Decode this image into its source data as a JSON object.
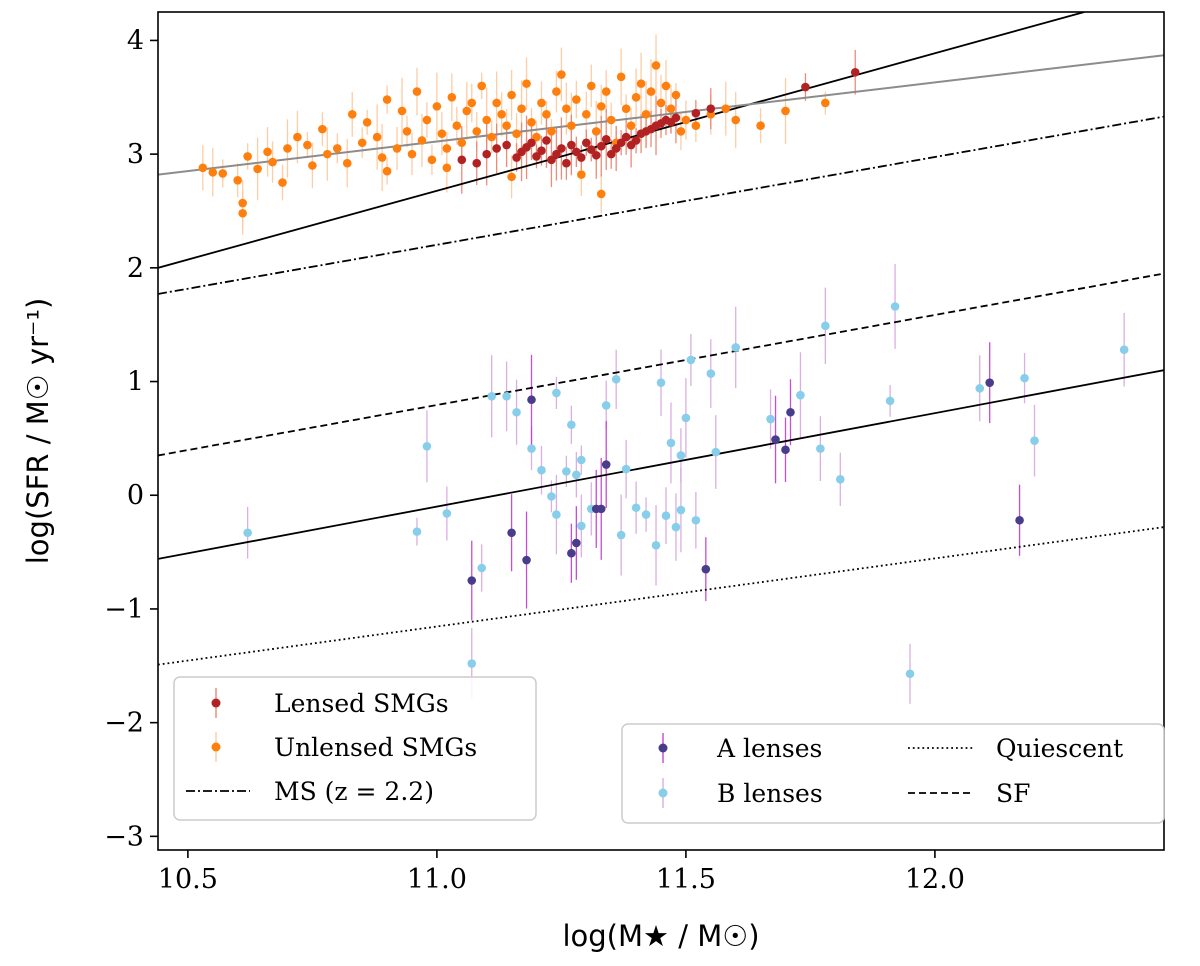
{
  "chart_data": {
    "type": "scatter",
    "xlabel": "log(M★ / M☉)",
    "ylabel": "log(SFR / M☉ yr⁻¹)",
    "xlim": [
      10.44,
      12.46
    ],
    "ylim": [
      -3.12,
      4.25
    ],
    "xticks": [
      10.5,
      11.0,
      11.5,
      12.0
    ],
    "xtick_labels": [
      "10.5",
      "11.0",
      "11.5",
      "12.0"
    ],
    "yticks": [
      -3,
      -2,
      -1,
      0,
      1,
      2,
      3,
      4
    ],
    "ytick_labels": [
      "−3",
      "−2",
      "−1",
      "0",
      "1",
      "2",
      "3",
      "4"
    ],
    "colors": {
      "lensed": "#b22222",
      "unlensed": "#ff7f0e",
      "a_lenses": "#483d8b",
      "b_lenses": "#87ceeb",
      "a_err": "#c03ad0",
      "b_err": "#d7a6de",
      "unlensed_err": "#ffc79a",
      "lensed_err": "#e8806a",
      "smg_fit": "#8c8c8c"
    },
    "lines": [
      {
        "name": "Lensed fit",
        "style": "solid",
        "color": "#000000",
        "x": [
          10.44,
          12.3
        ],
        "y": [
          2.0,
          4.25
        ]
      },
      {
        "name": "Unlensed fit",
        "style": "solid",
        "color": "#8c8c8c",
        "x": [
          10.44,
          12.46
        ],
        "y": [
          2.82,
          3.87
        ]
      },
      {
        "name": "MS (z = 2.2)",
        "style": "dashdot",
        "color": "#000000",
        "x": [
          10.44,
          12.46
        ],
        "y": [
          1.77,
          3.33
        ]
      },
      {
        "name": "SF",
        "style": "dashed",
        "color": "#000000",
        "x": [
          10.44,
          12.46
        ],
        "y": [
          0.35,
          1.95
        ]
      },
      {
        "name": "Lens fit",
        "style": "solid",
        "color": "#000000",
        "x": [
          10.44,
          12.46
        ],
        "y": [
          -0.56,
          1.1
        ]
      },
      {
        "name": "Quiescent",
        "style": "dotted",
        "color": "#000000",
        "x": [
          10.44,
          12.46
        ],
        "y": [
          -1.49,
          -0.28
        ]
      }
    ],
    "series": [
      {
        "name": "Lensed SMGs",
        "points": [
          [
            11.05,
            2.95
          ],
          [
            11.08,
            2.92
          ],
          [
            11.1,
            3.0
          ],
          [
            11.12,
            3.05
          ],
          [
            11.14,
            3.08
          ],
          [
            11.16,
            2.97
          ],
          [
            11.17,
            3.02
          ],
          [
            11.18,
            3.06
          ],
          [
            11.19,
            3.1
          ],
          [
            11.2,
            2.98
          ],
          [
            11.21,
            3.03
          ],
          [
            11.22,
            3.12
          ],
          [
            11.23,
            2.95
          ],
          [
            11.24,
            3.0
          ],
          [
            11.25,
            3.05
          ],
          [
            11.26,
            2.92
          ],
          [
            11.27,
            3.08
          ],
          [
            11.28,
            3.02
          ],
          [
            11.29,
            2.97
          ],
          [
            11.3,
            3.1
          ],
          [
            11.31,
            3.04
          ],
          [
            11.32,
            2.99
          ],
          [
            11.33,
            3.07
          ],
          [
            11.34,
            3.13
          ],
          [
            11.35,
            3.0
          ],
          [
            11.36,
            3.05
          ],
          [
            11.37,
            3.1
          ],
          [
            11.38,
            3.15
          ],
          [
            11.39,
            3.08
          ],
          [
            11.4,
            3.12
          ],
          [
            11.41,
            3.18
          ],
          [
            11.42,
            3.2
          ],
          [
            11.43,
            3.22
          ],
          [
            11.44,
            3.25
          ],
          [
            11.45,
            3.27
          ],
          [
            11.46,
            3.3
          ],
          [
            11.47,
            3.28
          ],
          [
            11.48,
            3.32
          ],
          [
            11.52,
            3.36
          ],
          [
            11.55,
            3.4
          ],
          [
            11.74,
            3.59
          ],
          [
            11.84,
            3.72
          ]
        ]
      },
      {
        "name": "Unlensed SMGs",
        "points": [
          [
            10.53,
            2.88
          ],
          [
            10.55,
            2.84
          ],
          [
            10.57,
            2.83
          ],
          [
            10.6,
            2.77
          ],
          [
            10.61,
            2.48
          ],
          [
            10.61,
            2.57
          ],
          [
            10.62,
            2.98
          ],
          [
            10.64,
            2.87
          ],
          [
            10.66,
            3.02
          ],
          [
            10.67,
            2.93
          ],
          [
            10.69,
            2.75
          ],
          [
            10.7,
            3.05
          ],
          [
            10.72,
            3.15
          ],
          [
            10.74,
            3.08
          ],
          [
            10.75,
            2.9
          ],
          [
            10.77,
            3.22
          ],
          [
            10.78,
            3.0
          ],
          [
            10.8,
            3.05
          ],
          [
            10.82,
            2.92
          ],
          [
            10.83,
            3.35
          ],
          [
            10.85,
            3.1
          ],
          [
            10.86,
            3.28
          ],
          [
            10.88,
            3.15
          ],
          [
            10.89,
            2.97
          ],
          [
            10.9,
            3.48
          ],
          [
            10.92,
            3.05
          ],
          [
            10.93,
            3.38
          ],
          [
            10.94,
            3.2
          ],
          [
            10.95,
            3.0
          ],
          [
            10.96,
            3.55
          ],
          [
            10.97,
            3.12
          ],
          [
            10.98,
            3.3
          ],
          [
            10.99,
            2.95
          ],
          [
            11.0,
            3.42
          ],
          [
            11.01,
            3.18
          ],
          [
            11.02,
            3.05
          ],
          [
            11.03,
            3.5
          ],
          [
            11.04,
            3.25
          ],
          [
            11.05,
            3.1
          ],
          [
            11.06,
            3.38
          ],
          [
            11.07,
            3.45
          ],
          [
            11.08,
            3.2
          ],
          [
            11.09,
            3.6
          ],
          [
            11.1,
            3.3
          ],
          [
            11.11,
            3.15
          ],
          [
            11.12,
            3.45
          ],
          [
            11.13,
            3.35
          ],
          [
            11.14,
            3.25
          ],
          [
            11.15,
            3.52
          ],
          [
            11.16,
            3.18
          ],
          [
            11.17,
            3.4
          ],
          [
            11.18,
            3.62
          ],
          [
            11.19,
            3.28
          ],
          [
            11.2,
            3.15
          ],
          [
            11.21,
            3.45
          ],
          [
            11.22,
            3.35
          ],
          [
            11.23,
            3.2
          ],
          [
            11.24,
            3.55
          ],
          [
            11.25,
            3.7
          ],
          [
            11.26,
            3.4
          ],
          [
            11.27,
            3.25
          ],
          [
            11.28,
            3.48
          ],
          [
            11.29,
            2.82
          ],
          [
            11.3,
            3.35
          ],
          [
            11.31,
            3.6
          ],
          [
            11.32,
            3.2
          ],
          [
            11.33,
            3.42
          ],
          [
            11.34,
            3.55
          ],
          [
            11.35,
            3.3
          ],
          [
            11.36,
            3.1
          ],
          [
            11.37,
            3.68
          ],
          [
            11.38,
            3.4
          ],
          [
            11.39,
            3.25
          ],
          [
            11.4,
            3.5
          ],
          [
            11.41,
            3.62
          ],
          [
            11.42,
            3.35
          ],
          [
            11.43,
            3.55
          ],
          [
            11.44,
            3.78
          ],
          [
            11.45,
            3.45
          ],
          [
            11.46,
            3.6
          ],
          [
            11.47,
            3.4
          ],
          [
            11.48,
            3.52
          ],
          [
            11.49,
            3.2
          ],
          [
            11.5,
            3.3
          ],
          [
            11.52,
            3.25
          ],
          [
            11.55,
            3.35
          ],
          [
            11.58,
            3.4
          ],
          [
            11.6,
            3.3
          ],
          [
            11.65,
            3.25
          ],
          [
            11.7,
            3.38
          ],
          [
            11.78,
            3.45
          ],
          [
            11.33,
            2.65
          ],
          [
            11.02,
            2.88
          ],
          [
            11.15,
            2.8
          ],
          [
            10.9,
            2.85
          ]
        ]
      },
      {
        "name": "A lenses",
        "points": [
          [
            11.07,
            -0.75
          ],
          [
            11.15,
            -0.33
          ],
          [
            11.18,
            -0.57
          ],
          [
            11.19,
            0.84
          ],
          [
            11.27,
            -0.51
          ],
          [
            11.28,
            -0.42
          ],
          [
            11.32,
            -0.12
          ],
          [
            11.33,
            -0.12
          ],
          [
            11.34,
            0.27
          ],
          [
            11.54,
            -0.65
          ],
          [
            11.68,
            0.49
          ],
          [
            11.7,
            0.4
          ],
          [
            11.71,
            0.73
          ],
          [
            12.11,
            0.99
          ],
          [
            12.17,
            -0.22
          ]
        ]
      },
      {
        "name": "B lenses",
        "points": [
          [
            10.62,
            -0.33
          ],
          [
            10.96,
            -0.32
          ],
          [
            10.98,
            0.43
          ],
          [
            11.02,
            -0.16
          ],
          [
            11.07,
            -1.48
          ],
          [
            11.09,
            -0.64
          ],
          [
            11.11,
            0.87
          ],
          [
            11.14,
            0.87
          ],
          [
            11.16,
            0.73
          ],
          [
            11.19,
            0.41
          ],
          [
            11.21,
            0.22
          ],
          [
            11.23,
            -0.01
          ],
          [
            11.24,
            -0.17
          ],
          [
            11.24,
            0.9
          ],
          [
            11.26,
            0.21
          ],
          [
            11.27,
            0.62
          ],
          [
            11.28,
            0.18
          ],
          [
            11.29,
            0.31
          ],
          [
            11.29,
            -0.27
          ],
          [
            11.31,
            -0.12
          ],
          [
            11.34,
            0.79
          ],
          [
            11.36,
            1.02
          ],
          [
            11.37,
            -0.35
          ],
          [
            11.38,
            0.23
          ],
          [
            11.4,
            -0.11
          ],
          [
            11.42,
            -0.17
          ],
          [
            11.44,
            -0.44
          ],
          [
            11.45,
            0.99
          ],
          [
            11.46,
            -0.18
          ],
          [
            11.47,
            0.46
          ],
          [
            11.48,
            -0.28
          ],
          [
            11.49,
            0.35
          ],
          [
            11.49,
            -0.13
          ],
          [
            11.5,
            0.68
          ],
          [
            11.51,
            1.19
          ],
          [
            11.52,
            -0.22
          ],
          [
            11.55,
            1.07
          ],
          [
            11.56,
            0.38
          ],
          [
            11.6,
            1.3
          ],
          [
            11.67,
            0.67
          ],
          [
            11.73,
            0.88
          ],
          [
            11.77,
            0.41
          ],
          [
            11.78,
            1.49
          ],
          [
            11.81,
            0.14
          ],
          [
            11.91,
            0.83
          ],
          [
            11.92,
            1.66
          ],
          [
            11.95,
            -1.57
          ],
          [
            12.09,
            0.94
          ],
          [
            12.18,
            1.03
          ],
          [
            12.2,
            0.48
          ],
          [
            12.38,
            1.28
          ]
        ]
      }
    ],
    "legends": [
      {
        "position": "lower-left",
        "entries": [
          {
            "label": "Lensed SMGs",
            "kind": "point",
            "series": "lensed"
          },
          {
            "label": "Unlensed SMGs",
            "kind": "point",
            "series": "unlensed"
          },
          {
            "label": "MS (z = 2.2)",
            "kind": "line",
            "style": "dashdot"
          }
        ]
      },
      {
        "position": "lower-right",
        "entries": [
          {
            "label": "A lenses",
            "kind": "point",
            "series": "a_lenses"
          },
          {
            "label": "B lenses",
            "kind": "point",
            "series": "b_lenses"
          },
          {
            "label": "Quiescent",
            "kind": "line",
            "style": "dotted"
          },
          {
            "label": "SF",
            "kind": "line",
            "style": "dashed"
          }
        ]
      }
    ]
  }
}
